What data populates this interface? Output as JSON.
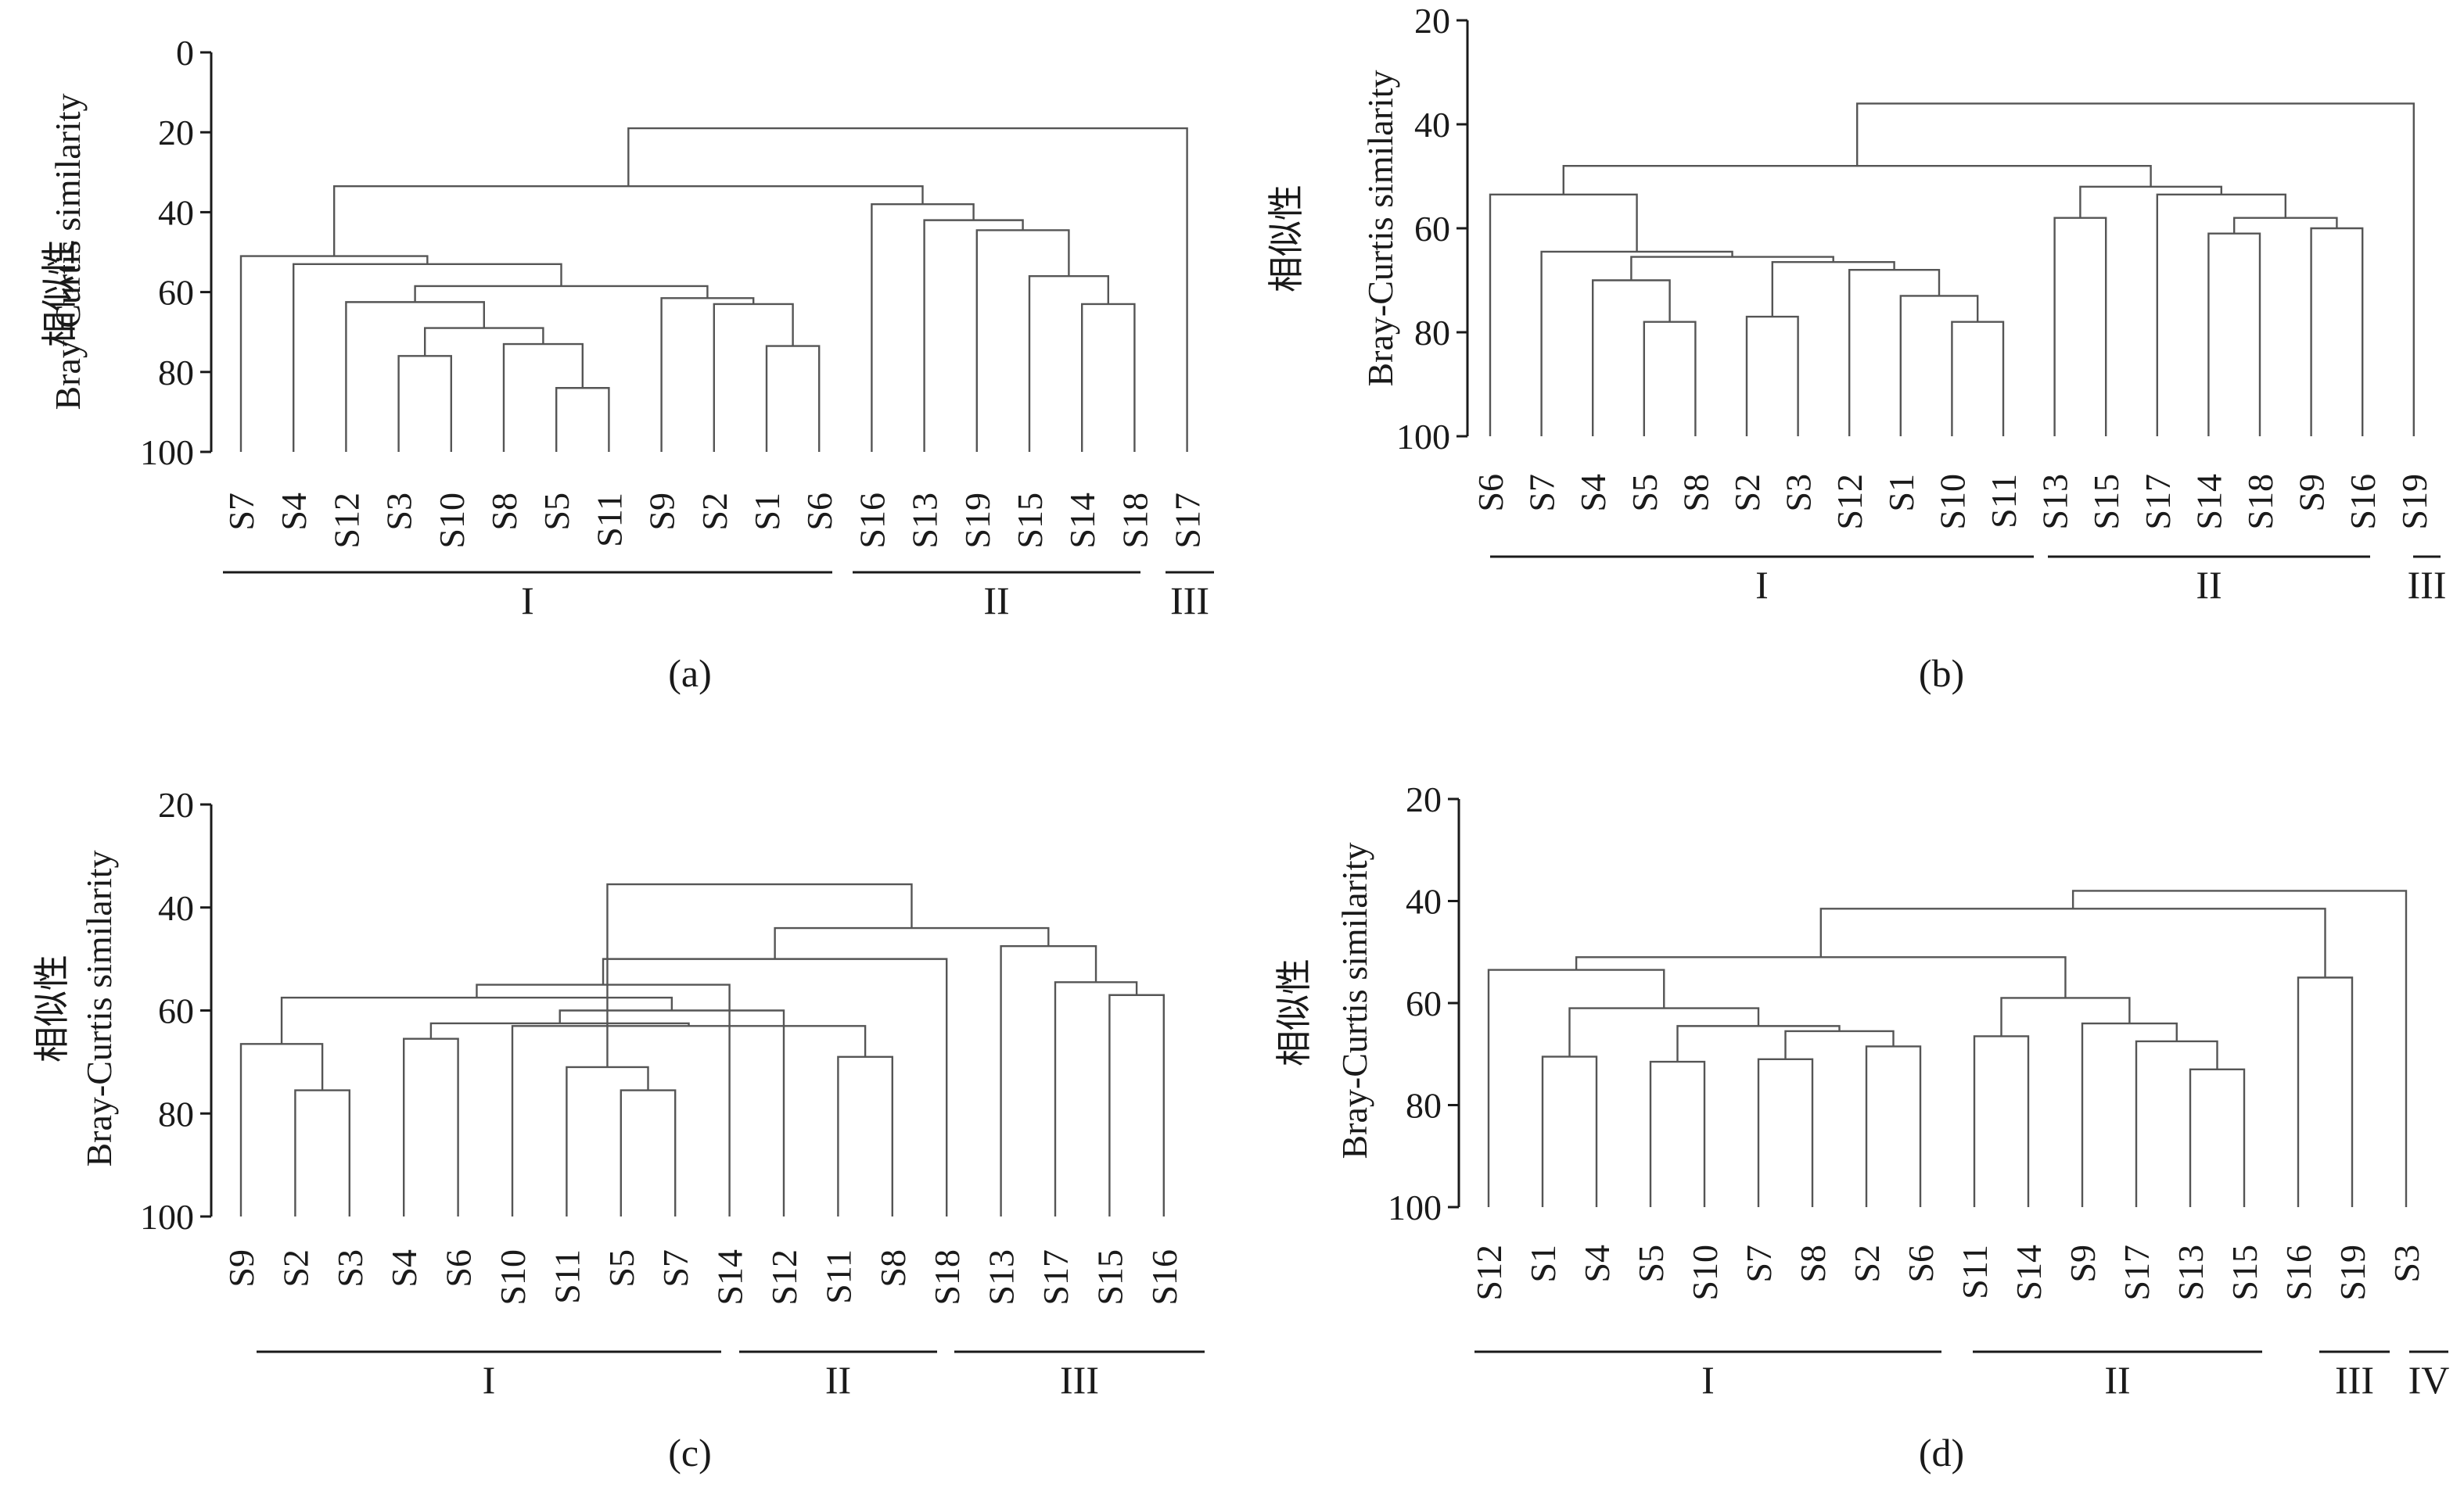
{
  "chart_data": [
    {
      "type": "dendrogram",
      "panel_label": "(a)",
      "ylabel_cn": "相似性",
      "ylabel_en": "Bray-Curtis similarity",
      "ylim": [
        0,
        100
      ],
      "yticks": [
        "0",
        "20",
        "40",
        "60",
        "80",
        "100"
      ],
      "leaves": [
        "S7",
        "S4",
        "S12",
        "S3",
        "S10",
        "S8",
        "S5",
        "S11",
        "S9",
        "S2",
        "S1",
        "S6",
        "S16",
        "S13",
        "S19",
        "S15",
        "S14",
        "S18",
        "S17"
      ],
      "merges": [
        {
          "a": "S5",
          "b": "S11",
          "sim": 84
        },
        {
          "a": "S1",
          "b": "S6",
          "sim": 73.5
        },
        {
          "a": "S8",
          "b": "[S5,S11]",
          "sim": 73
        },
        {
          "a": "S3",
          "b": "S10",
          "sim": 76
        },
        {
          "a": "[S3,S10]",
          "b": "[S8,S5,S11]",
          "sim": 69
        },
        {
          "a": "S2",
          "b": "[S1,S6]",
          "sim": 63
        },
        {
          "a": "S14",
          "b": "S18",
          "sim": 63
        },
        {
          "a": "S12",
          "b": "[S3..S11]",
          "sim": 62.5
        },
        {
          "a": "S9",
          "b": "[S2,S1,S6]",
          "sim": 61.5
        },
        {
          "a": "[S12..S11]",
          "b": "[S9..S6]",
          "sim": 58.5
        },
        {
          "a": "S15",
          "b": "[S14,S18]",
          "sim": 56
        },
        {
          "a": "S4",
          "b": "[S12..S6]",
          "sim": 53
        },
        {
          "a": "S7",
          "b": "[S4..S6]",
          "sim": 51
        },
        {
          "a": "S19",
          "b": "[S15,S14,S18]",
          "sim": 44.5
        },
        {
          "a": "S13",
          "b": "[S19..S18]",
          "sim": 42
        },
        {
          "a": "S16",
          "b": "[S13..S18]",
          "sim": 38
        },
        {
          "a": "Group I",
          "b": "Group II",
          "sim": 33.5
        },
        {
          "a": "[I,II]",
          "b": "S17",
          "sim": 19
        }
      ],
      "groups": [
        {
          "label": "I",
          "members": [
            "S7",
            "S4",
            "S12",
            "S3",
            "S10",
            "S8",
            "S5",
            "S11",
            "S9",
            "S2",
            "S1",
            "S6"
          ]
        },
        {
          "label": "II",
          "members": [
            "S16",
            "S13",
            "S19",
            "S15",
            "S14",
            "S18"
          ]
        },
        {
          "label": "III",
          "members": [
            "S17"
          ]
        }
      ]
    },
    {
      "type": "dendrogram",
      "panel_label": "(b)",
      "ylabel_cn": "相似性",
      "ylabel_en": "Bray-Curtis similarity",
      "ylim": [
        20,
        100
      ],
      "yticks": [
        "20",
        "40",
        "60",
        "80",
        "100"
      ],
      "leaves": [
        "S6",
        "S7",
        "S4",
        "S5",
        "S8",
        "S2",
        "S3",
        "S12",
        "S1",
        "S10",
        "S11",
        "S13",
        "S15",
        "S17",
        "S14",
        "S18",
        "S9",
        "S16",
        "S19"
      ],
      "merges": [
        {
          "a": "S5",
          "b": "S8",
          "sim": 78
        },
        {
          "a": "S10",
          "b": "S11",
          "sim": 78
        },
        {
          "a": "S2",
          "b": "S3",
          "sim": 77
        },
        {
          "a": "S1",
          "b": "[S10,S11]",
          "sim": 73
        },
        {
          "a": "S4",
          "b": "[S5,S8]",
          "sim": 70
        },
        {
          "a": "S12",
          "b": "[S1,S10,S11]",
          "sim": 68
        },
        {
          "a": "[S2,S3]",
          "b": "[S12..S11]",
          "sim": 66.5
        },
        {
          "a": "[S4,S5,S8]",
          "b": "[S2..S11]",
          "sim": 65.5
        },
        {
          "a": "S7",
          "b": "[S4..S11]",
          "sim": 64.5
        },
        {
          "a": "S14",
          "b": "S18",
          "sim": 61
        },
        {
          "a": "S9",
          "b": "S16",
          "sim": 60
        },
        {
          "a": "S13",
          "b": "S15",
          "sim": 58
        },
        {
          "a": "[S14,S18]",
          "b": "[S9,S16]",
          "sim": 58
        },
        {
          "a": "S6",
          "b": "[S7..S11]",
          "sim": 53.5
        },
        {
          "a": "S17",
          "b": "[S14..S16]",
          "sim": 53.5
        },
        {
          "a": "[S13,S15]",
          "b": "[S17..S16]",
          "sim": 52
        },
        {
          "a": "Group I",
          "b": "Group II",
          "sim": 48
        },
        {
          "a": "[I,II]",
          "b": "S19",
          "sim": 36
        }
      ],
      "groups": [
        {
          "label": "I",
          "members": [
            "S6",
            "S7",
            "S4",
            "S5",
            "S8",
            "S2",
            "S3",
            "S12",
            "S1",
            "S10",
            "S11"
          ]
        },
        {
          "label": "II",
          "members": [
            "S13",
            "S15",
            "S17",
            "S14",
            "S18",
            "S9",
            "S16"
          ]
        },
        {
          "label": "III",
          "members": [
            "S19"
          ]
        }
      ]
    },
    {
      "type": "dendrogram",
      "panel_label": "(c)",
      "ylabel_cn": "相似性",
      "ylabel_en": "Bray-Curtis similarity",
      "ylim": [
        20,
        100
      ],
      "yticks": [
        "20",
        "40",
        "60",
        "80",
        "100"
      ],
      "leaves": [
        "S9",
        "S2",
        "S3",
        "S4",
        "S6",
        "S10",
        "S11",
        "S5",
        "S7",
        "S14",
        "S12",
        "S11",
        "S8",
        "S18",
        "S13",
        "S17",
        "S15",
        "S16"
      ],
      "merges": [
        {
          "a": "S5",
          "b": "S7",
          "sim": 75.5
        },
        {
          "a": "S2",
          "b": "S3",
          "sim": 75.5
        },
        {
          "a": "S11",
          "b": "[S5,S7]",
          "sim": 71
        },
        {
          "a": "S11 (II)",
          "b": "S8",
          "sim": 69
        },
        {
          "a": "S9",
          "b": "[S2,S3]",
          "sim": 66.5
        },
        {
          "a": "S4",
          "b": "S6",
          "sim": 65.5
        },
        {
          "a": "S10",
          "b": "[S11,S5,S7]",
          "sim": 63
        },
        {
          "a": "[S4,S6]",
          "b": "[S10..S7]",
          "sim": 62.5
        },
        {
          "a": "S12",
          "b": "[S11,S8]",
          "sim": 60
        },
        {
          "a": "[S9,S2,S3]",
          "b": "[S4..S7]",
          "sim": 57.5
        },
        {
          "a": "S15",
          "b": "S16",
          "sim": 57
        },
        {
          "a": "S14",
          "b": "[S12,S11,S8]",
          "sim": 55
        },
        {
          "a": "S17",
          "b": "[S15,S16]",
          "sim": 54.5
        },
        {
          "a": "Group I",
          "b": "Group II",
          "sim": 50
        },
        {
          "a": "S13",
          "b": "[S17,S15,S16]",
          "sim": 47.5
        },
        {
          "a": "S18",
          "b": "[S13..S16]",
          "sim": 44
        },
        {
          "a": "[I,II]",
          "b": "Group III",
          "sim": 35.5
        }
      ],
      "groups": [
        {
          "label": "I",
          "members": [
            "S9",
            "S2",
            "S3",
            "S4",
            "S6",
            "S10",
            "S11",
            "S5",
            "S7"
          ]
        },
        {
          "label": "II",
          "members": [
            "S14",
            "S12",
            "S11",
            "S8"
          ]
        },
        {
          "label": "III",
          "members": [
            "S18",
            "S13",
            "S17",
            "S15",
            "S16"
          ]
        }
      ]
    },
    {
      "type": "dendrogram",
      "panel_label": "(d)",
      "ylabel_cn": "相似性",
      "ylabel_en": "Bray-Curtis similarity",
      "ylim": [
        20,
        100
      ],
      "yticks": [
        "20",
        "40",
        "60",
        "80",
        "100"
      ],
      "leaves": [
        "S12",
        "S1",
        "S4",
        "S5",
        "S10",
        "S7",
        "S8",
        "S2",
        "S6",
        "S11",
        "S14",
        "S9",
        "S17",
        "S13",
        "S15",
        "S16",
        "S19",
        "S3"
      ],
      "merges": [
        {
          "a": "S13",
          "b": "S15",
          "sim": 73
        },
        {
          "a": "S5",
          "b": "S10",
          "sim": 71.5
        },
        {
          "a": "S7",
          "b": "S8",
          "sim": 71
        },
        {
          "a": "S1",
          "b": "S4",
          "sim": 70.5
        },
        {
          "a": "S2",
          "b": "S6",
          "sim": 68.5
        },
        {
          "a": "S17",
          "b": "[S13,S15]",
          "sim": 67.5
        },
        {
          "a": "S11",
          "b": "S14",
          "sim": 66.5
        },
        {
          "a": "[S7,S8]",
          "b": "[S2,S6]",
          "sim": 65.5
        },
        {
          "a": "[S5,S10]",
          "b": "[S7..S6]",
          "sim": 64.5
        },
        {
          "a": "S9",
          "b": "[S17,S13,S15]",
          "sim": 64
        },
        {
          "a": "[S1,S4]",
          "b": "[S5..S6]",
          "sim": 61
        },
        {
          "a": "[S11,S14]",
          "b": "[S9..S15]",
          "sim": 59
        },
        {
          "a": "S16",
          "b": "S19",
          "sim": 55
        },
        {
          "a": "S12",
          "b": "[S1..S6]",
          "sim": 53.5
        },
        {
          "a": "Group I",
          "b": "Group II",
          "sim": 51
        },
        {
          "a": "[I,II]",
          "b": "Group III",
          "sim": 41.5
        },
        {
          "a": "[I,II,III]",
          "b": "S3",
          "sim": 38
        }
      ],
      "groups": [
        {
          "label": "I",
          "members": [
            "S12",
            "S1",
            "S4",
            "S5",
            "S10",
            "S7",
            "S8",
            "S2",
            "S6"
          ]
        },
        {
          "label": "II",
          "members": [
            "S11",
            "S14",
            "S9",
            "S17",
            "S13",
            "S15"
          ]
        },
        {
          "label": "III",
          "members": [
            "S16",
            "S19"
          ]
        },
        {
          "label": "IV",
          "members": [
            "S3"
          ]
        }
      ]
    }
  ]
}
